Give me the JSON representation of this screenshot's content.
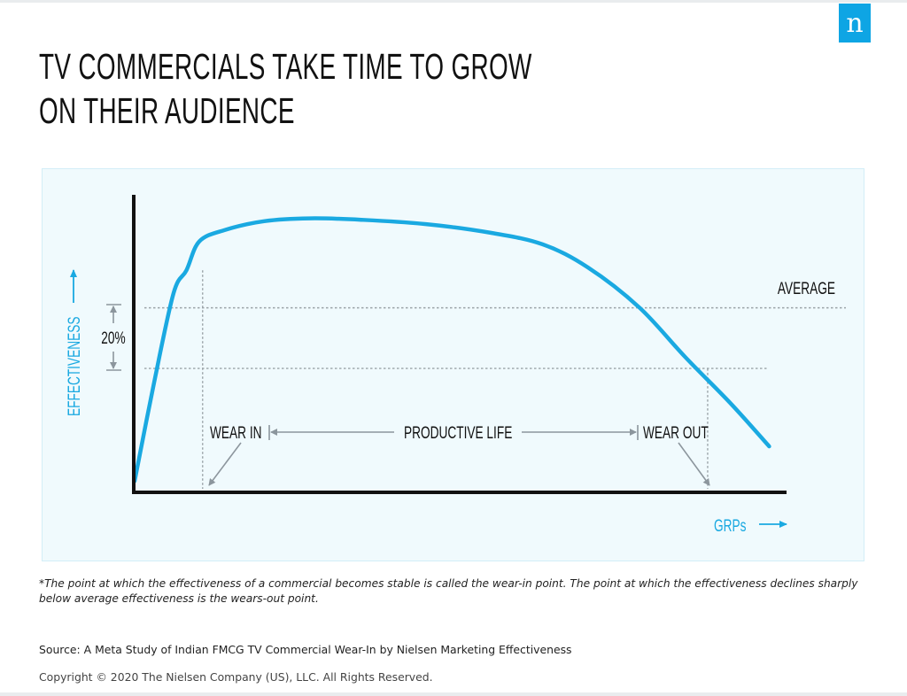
{
  "brand": {
    "logo_letter": "n",
    "logo_color": "#0ea5e4"
  },
  "title_lines": [
    "TV COMMERCIALS TAKE TIME TO GROW",
    "ON THEIR AUDIENCE"
  ],
  "chart_data": {
    "type": "line",
    "title": "TV COMMERCIALS TAKE TIME TO GROW ON THEIR AUDIENCE",
    "xlabel": "GRPs",
    "ylabel": "EFFECTIVENESS",
    "grid": false,
    "legend": "none",
    "xlim": [
      0,
      100
    ],
    "ylim": [
      0,
      100
    ],
    "series": [
      {
        "name": "Effectiveness",
        "color": "#1aa9e1",
        "points": [
          [
            0,
            3
          ],
          [
            3,
            37
          ],
          [
            6,
            68
          ],
          [
            8,
            76
          ],
          [
            10,
            86
          ],
          [
            14,
            90
          ],
          [
            20,
            93
          ],
          [
            27,
            94
          ],
          [
            35,
            93.5
          ],
          [
            45,
            92
          ],
          [
            55,
            89
          ],
          [
            63,
            85
          ],
          [
            70,
            77
          ],
          [
            78,
            63
          ],
          [
            85,
            46
          ],
          [
            92,
            30
          ],
          [
            98,
            15
          ]
        ]
      }
    ],
    "reference_lines": {
      "average": {
        "label": "AVERAGE",
        "y": 63
      },
      "lower": {
        "y": 42
      }
    },
    "markers": {
      "wear_in": {
        "label": "WEAR IN",
        "x": 10.5
      },
      "wear_out": {
        "label": "WEAR OUT",
        "x": 88.5
      },
      "productive_life": {
        "label": "PRODUCTIVE LIFE"
      }
    },
    "annotations": [
      {
        "text": "20%",
        "meaning": "gap between average and lower effectiveness lines"
      }
    ]
  },
  "footnote": "*The point at which the effectiveness of a commercial becomes stable is called the wear-in point. The point at which the effectiveness declines sharply below average effectiveness is the wears-out point.",
  "source": "Source: A Meta Study of Indian FMCG TV Commercial Wear-In by Nielsen Marketing Effectiveness",
  "copyright": "Copyright © 2020 The Nielsen Company (US), LLC. All Rights Reserved."
}
